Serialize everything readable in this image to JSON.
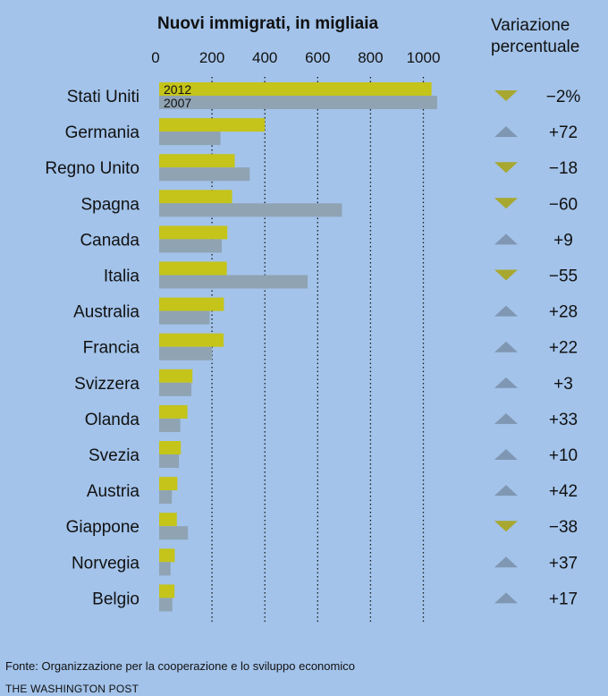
{
  "title": "Nuovi immigrati, in migliaia",
  "change_title": "Variazione percentuale",
  "source": "Fonte: Organizzazione per la cooperazione e lo sviluppo economico",
  "credit": "THE WASHINGTON POST",
  "colors": {
    "y2012": "#c4c41a",
    "y2007": "#8fa3b3",
    "down": "#a8a830",
    "up": "#7f97b2",
    "background": "#a3c3ea"
  },
  "chart_data": {
    "type": "bar",
    "orientation": "horizontal",
    "title": "Nuovi immigrati, in migliaia",
    "xlim": [
      0,
      1100
    ],
    "xticks": [
      0,
      200,
      400,
      600,
      800,
      1000
    ],
    "grid": "vertical dotted",
    "categories": [
      "Stati Uniti",
      "Germania",
      "Regno Unito",
      "Spagna",
      "Canada",
      "Italia",
      "Australia",
      "Francia",
      "Svizzera",
      "Olanda",
      "Svezia",
      "Austria",
      "Giappone",
      "Norvegia",
      "Belgio"
    ],
    "series": [
      {
        "name": "2012",
        "values": [
          1031,
          400,
          286,
          276,
          258,
          256,
          245,
          244,
          126,
          107,
          82,
          69,
          67,
          59,
          58
        ]
      },
      {
        "name": "2007",
        "values": [
          1052,
          232,
          343,
          692,
          237,
          562,
          191,
          200,
          122,
          80,
          75,
          48,
          109,
          43,
          50
        ]
      }
    ],
    "change": {
      "title": "Variazione percentuale",
      "labels": [
        "−2%",
        "+72",
        "−18",
        "−60",
        "+9",
        "−55",
        "+28",
        "+22",
        "+3",
        "+33",
        "+10",
        "+42",
        "−38",
        "+37",
        "+17"
      ],
      "direction": [
        "down",
        "up",
        "down",
        "down",
        "up",
        "down",
        "up",
        "up",
        "up",
        "up",
        "up",
        "up",
        "down",
        "up",
        "up"
      ]
    }
  }
}
